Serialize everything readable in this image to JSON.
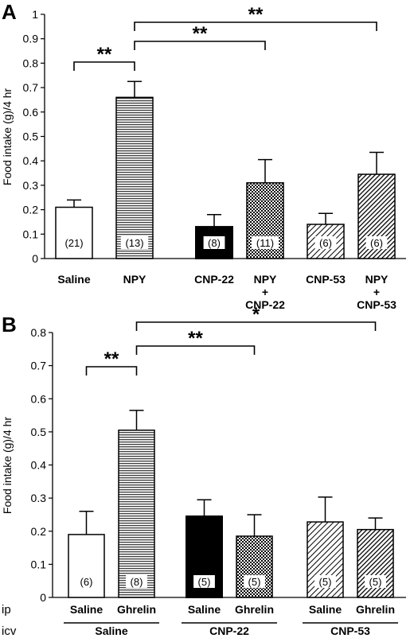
{
  "chart_data": [
    {
      "panel_label": "A",
      "type": "bar",
      "ylabel": "Food intake (g)/4 hr",
      "ylim": [
        0,
        1.0
      ],
      "yticks": [
        "0",
        "0.1",
        "0.2",
        "0.3",
        "0.4",
        "0.5",
        "0.6",
        "0.7",
        "0.8",
        "0.9",
        "1"
      ],
      "categories": [
        {
          "lines": [
            "Saline"
          ]
        },
        {
          "lines": [
            "NPY"
          ]
        },
        {
          "lines": [
            "CNP-22"
          ]
        },
        {
          "lines": [
            "NPY",
            "+",
            "CNP-22"
          ]
        },
        {
          "lines": [
            "CNP-53"
          ]
        },
        {
          "lines": [
            "NPY",
            "+",
            "CNP-53"
          ]
        }
      ],
      "values": [
        0.21,
        0.66,
        0.13,
        0.31,
        0.14,
        0.345
      ],
      "errors": [
        0.03,
        0.065,
        0.05,
        0.095,
        0.045,
        0.09
      ],
      "n_labels": [
        "(21)",
        "(13)",
        "(8)",
        "(11)",
        "(6)",
        "(6)"
      ],
      "fills": [
        "white",
        "hlines",
        "black",
        "checker",
        "diag",
        "diagdark"
      ],
      "significance": [
        {
          "from": 0,
          "to": 1,
          "label": "**"
        },
        {
          "from": 1,
          "to": 3,
          "label": "**"
        },
        {
          "from": 1,
          "to": 5,
          "label": "**"
        }
      ]
    },
    {
      "panel_label": "B",
      "type": "bar",
      "ylabel": "Food intake (g)/4 hr",
      "ylim": [
        0,
        0.8
      ],
      "yticks": [
        "0",
        "0.1",
        "0.2",
        "0.3",
        "0.4",
        "0.5",
        "0.6",
        "0.7",
        "0.8"
      ],
      "categories": [
        {
          "lines": [
            "Saline"
          ]
        },
        {
          "lines": [
            "Ghrelin"
          ]
        },
        {
          "lines": [
            "Saline"
          ]
        },
        {
          "lines": [
            "Ghrelin"
          ]
        },
        {
          "lines": [
            "Saline"
          ]
        },
        {
          "lines": [
            "Ghrelin"
          ]
        }
      ],
      "values": [
        0.19,
        0.505,
        0.245,
        0.185,
        0.228,
        0.205
      ],
      "errors": [
        0.07,
        0.06,
        0.05,
        0.065,
        0.075,
        0.035
      ],
      "n_labels": [
        "(6)",
        "(8)",
        "(5)",
        "(5)",
        "(5)",
        "(5)"
      ],
      "fills": [
        "white",
        "hlines",
        "black",
        "checker",
        "diag",
        "diagdark"
      ],
      "significance": [
        {
          "from": 0,
          "to": 1,
          "label": "**"
        },
        {
          "from": 1,
          "to": 3,
          "label": "**"
        },
        {
          "from": 1,
          "to": 5,
          "label": "*"
        }
      ],
      "row_labels": {
        "ip": "ip",
        "icv": "icv"
      },
      "icv_groups": [
        {
          "label": "Saline",
          "from": 0,
          "to": 1
        },
        {
          "label": "CNP-22",
          "from": 2,
          "to": 3
        },
        {
          "label": "CNP-53",
          "from": 4,
          "to": 5
        }
      ]
    }
  ]
}
